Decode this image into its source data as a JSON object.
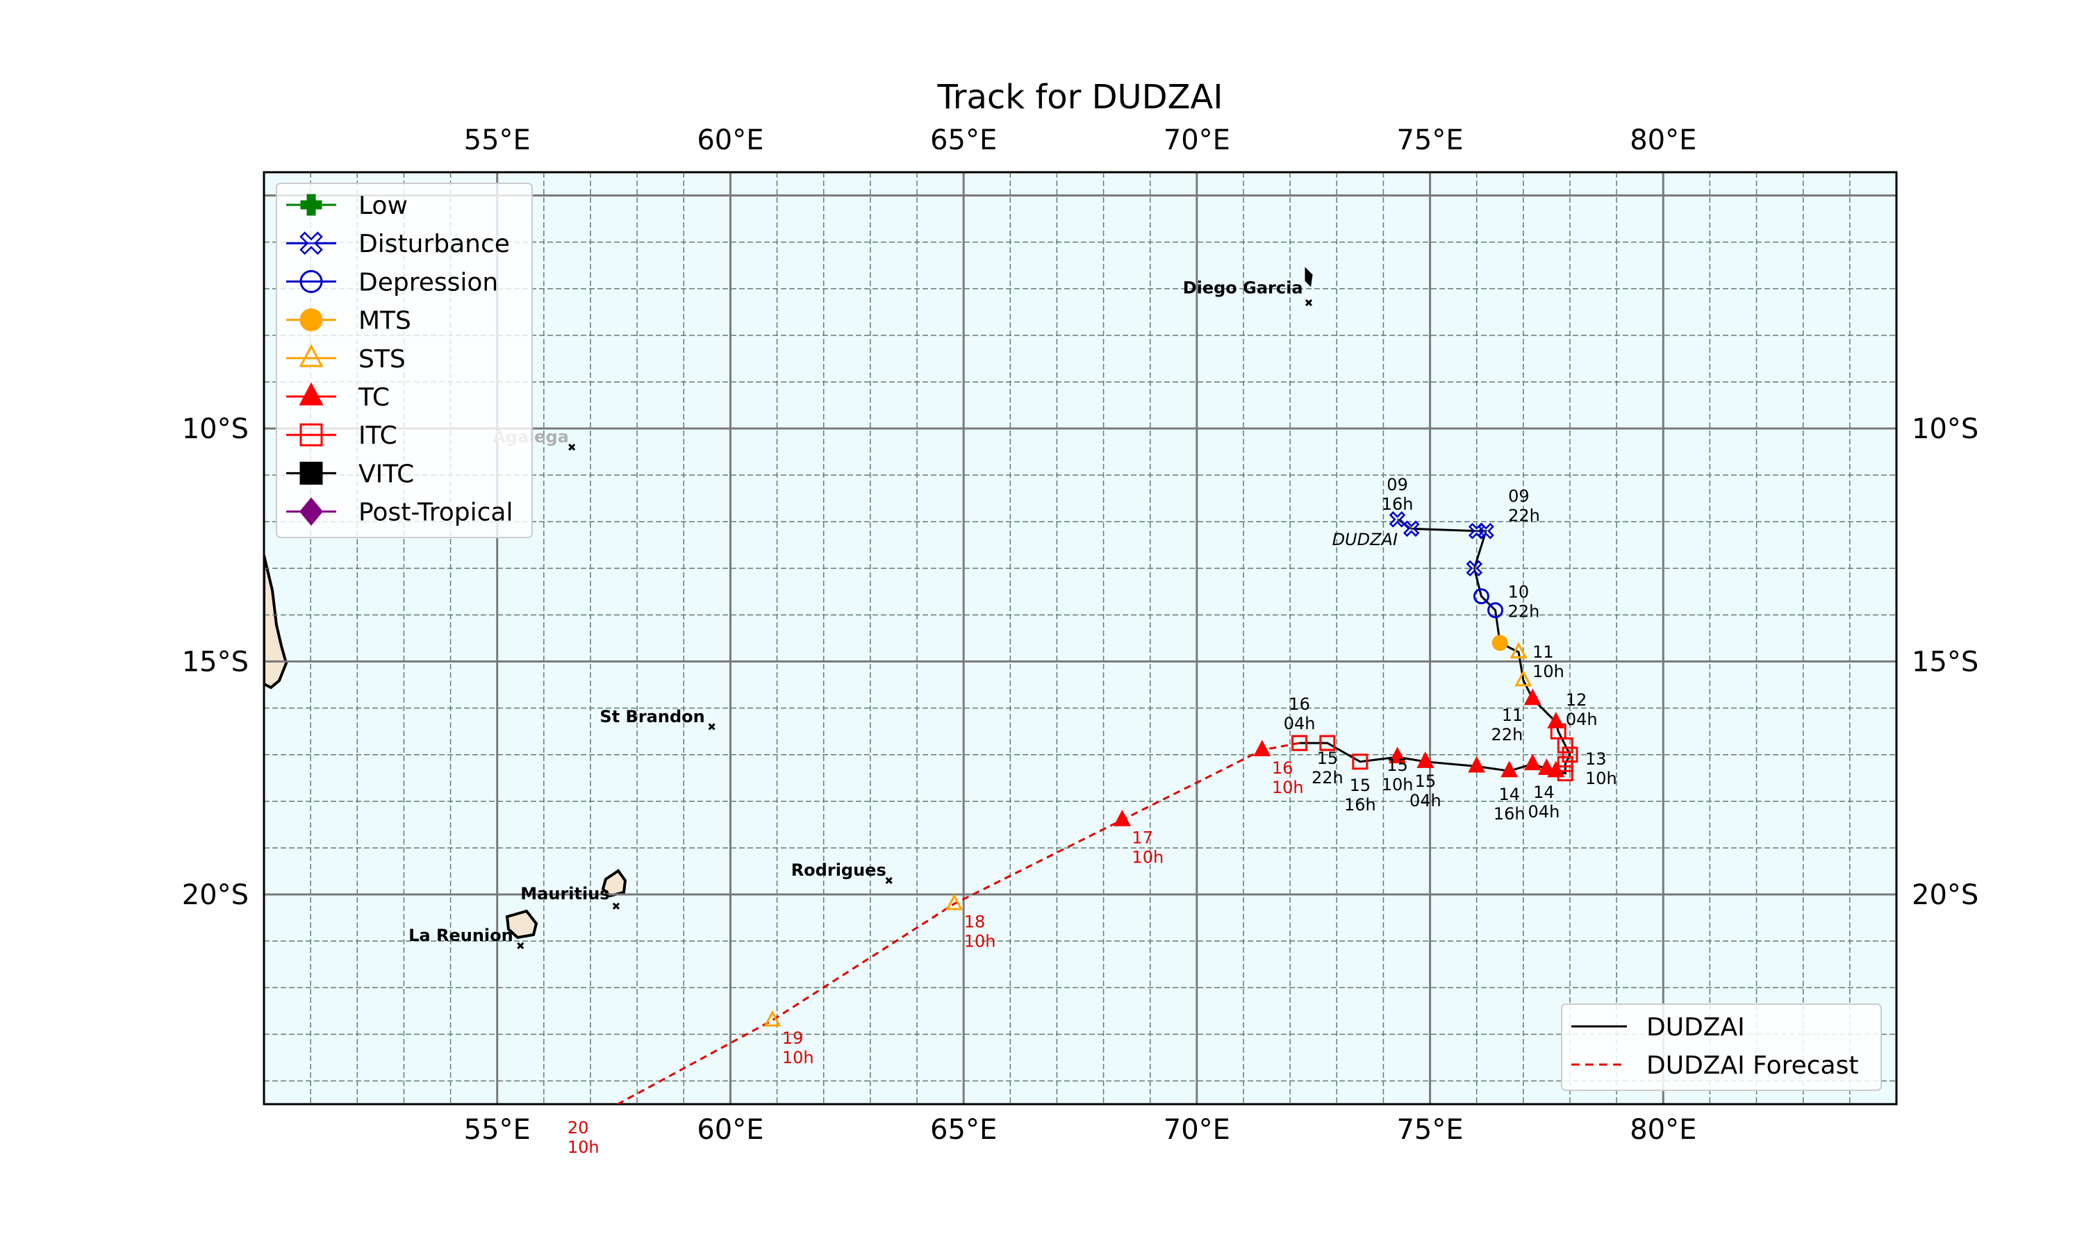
{
  "title": "Track for DUDZAI",
  "colors": {
    "ocean": "#eefbfc",
    "land": "#f5e6d3",
    "grid_major": "#7a7a7a",
    "grid_minor": "#5e7d70",
    "track": "#000000",
    "forecast": "#e00000",
    "low": "#008000",
    "disturbance": "#0000cc",
    "depression": "#0000cc",
    "mts": "#ffa500",
    "sts": "#ffa500",
    "tc": "#ff0000",
    "itc": "#ff0000",
    "vitc": "#000000",
    "post_tropical": "#800080"
  },
  "axes": {
    "lon_range": [
      50,
      85
    ],
    "lat_range": [
      -24.5,
      -4.5
    ],
    "lon_major": [
      55,
      60,
      65,
      70,
      75,
      80
    ],
    "lat_major": [
      -10,
      -15,
      -20
    ],
    "lon_labels": [
      "55°E",
      "60°E",
      "65°E",
      "70°E",
      "75°E",
      "80°E"
    ],
    "lat_labels": [
      "10°S",
      "15°S",
      "20°S"
    ]
  },
  "legend": {
    "placement": "upper-left",
    "entries": [
      {
        "label": "Low",
        "marker": "plus",
        "color": "#008000",
        "fill": true
      },
      {
        "label": "Disturbance",
        "marker": "x-open",
        "color": "#0000cc",
        "fill": false
      },
      {
        "label": "Depression",
        "marker": "circle",
        "color": "#0000cc",
        "fill": false
      },
      {
        "label": "MTS",
        "marker": "circle",
        "color": "#ffa500",
        "fill": true
      },
      {
        "label": "STS",
        "marker": "triangle",
        "color": "#ffa500",
        "fill": false
      },
      {
        "label": "TC",
        "marker": "triangle",
        "color": "#ff0000",
        "fill": true
      },
      {
        "label": "ITC",
        "marker": "square",
        "color": "#ff0000",
        "fill": false
      },
      {
        "label": "VITC",
        "marker": "square",
        "color": "#000000",
        "fill": true
      },
      {
        "label": "Post-Tropical",
        "marker": "diamond",
        "color": "#800080",
        "fill": true
      }
    ]
  },
  "track_legend": {
    "placement": "lower-right",
    "entries": [
      {
        "label": "DUDZAI",
        "style": "solid",
        "color": "#000000"
      },
      {
        "label": "DUDZAI Forecast",
        "style": "dashed",
        "color": "#e00000"
      }
    ]
  },
  "places": [
    {
      "name": "Diego Garcia",
      "lon": 72.4,
      "lat": -7.3,
      "label_lon": 69.7,
      "label_lat": -7.1
    },
    {
      "name": "Agalega",
      "lon": 56.6,
      "lat": -10.4,
      "label_lon": 54.9,
      "label_lat": -10.3,
      "faded": true
    },
    {
      "name": "St Brandon",
      "lon": 59.6,
      "lat": -16.4,
      "label_lon": 57.2,
      "label_lat": -16.3
    },
    {
      "name": "Rodrigues",
      "lon": 63.4,
      "lat": -19.7,
      "label_lon": 61.3,
      "label_lat": -19.6
    },
    {
      "name": "Mauritius",
      "lon": 57.55,
      "lat": -20.25,
      "label_lon": 55.5,
      "label_lat": -20.1
    },
    {
      "name": "La Reunion",
      "lon": 55.5,
      "lat": -21.1,
      "label_lon": 53.1,
      "label_lat": -21.0
    }
  ],
  "storm_label": {
    "text": "DUDZAI",
    "lon": 72.9,
    "lat": -12.5
  },
  "chart_data": {
    "type": "map-track",
    "storm": "DUDZAI",
    "observed_track": [
      {
        "lon": 74.3,
        "lat": -11.95,
        "category": "Disturbance",
        "label": "09 16h"
      },
      {
        "lon": 74.6,
        "lat": -12.15,
        "category": "Disturbance"
      },
      {
        "lon": 76.0,
        "lat": -12.2,
        "category": "Disturbance"
      },
      {
        "lon": 76.2,
        "lat": -12.2,
        "category": "Disturbance",
        "label": "09 22h"
      },
      {
        "lon": 75.95,
        "lat": -13.0,
        "category": "Disturbance"
      },
      {
        "lon": 76.1,
        "lat": -13.6,
        "category": "Depression"
      },
      {
        "lon": 76.4,
        "lat": -13.9,
        "category": "Depression",
        "label": "10 22h"
      },
      {
        "lon": 76.5,
        "lat": -14.6,
        "category": "MTS"
      },
      {
        "lon": 76.9,
        "lat": -14.8,
        "category": "STS",
        "label": "11 10h"
      },
      {
        "lon": 77.0,
        "lat": -15.4,
        "category": "STS"
      },
      {
        "lon": 77.2,
        "lat": -15.8,
        "category": "TC",
        "label": "11 22h"
      },
      {
        "lon": 77.7,
        "lat": -16.3,
        "category": "TC",
        "label": "12 04h"
      },
      {
        "lon": 77.75,
        "lat": -16.5,
        "category": "ITC"
      },
      {
        "lon": 77.9,
        "lat": -16.8,
        "category": "ITC"
      },
      {
        "lon": 78.0,
        "lat": -17.0,
        "category": "ITC",
        "label": "13 10h"
      },
      {
        "lon": 77.9,
        "lat": -17.2,
        "category": "ITC"
      },
      {
        "lon": 77.9,
        "lat": -17.4,
        "category": "ITC"
      },
      {
        "lon": 77.7,
        "lat": -17.35,
        "category": "TC"
      },
      {
        "lon": 77.5,
        "lat": -17.3,
        "category": "TC",
        "label": "14 04h"
      },
      {
        "lon": 77.2,
        "lat": -17.2,
        "category": "TC"
      },
      {
        "lon": 76.7,
        "lat": -17.35,
        "category": "TC",
        "label": "14 16h"
      },
      {
        "lon": 76.0,
        "lat": -17.25,
        "category": "TC"
      },
      {
        "lon": 74.9,
        "lat": -17.15,
        "category": "TC",
        "label": "15 04h"
      },
      {
        "lon": 74.3,
        "lat": -17.05,
        "category": "TC",
        "label": "15 10h"
      },
      {
        "lon": 73.5,
        "lat": -17.15,
        "category": "ITC",
        "label": "15 16h"
      },
      {
        "lon": 72.8,
        "lat": -16.75,
        "category": "ITC",
        "label": "15 22h"
      },
      {
        "lon": 72.2,
        "lat": -16.75,
        "category": "ITC",
        "label": "16 04h"
      }
    ],
    "forecast_track": [
      {
        "lon": 72.2,
        "lat": -16.75
      },
      {
        "lon": 71.4,
        "lat": -16.9,
        "category": "TC",
        "label": "16 10h"
      },
      {
        "lon": 68.4,
        "lat": -18.4,
        "category": "TC",
        "label": "17 10h"
      },
      {
        "lon": 64.8,
        "lat": -20.2,
        "category": "STS",
        "label": "18 10h"
      },
      {
        "lon": 60.9,
        "lat": -22.7,
        "category": "STS",
        "label": "19 10h"
      },
      {
        "lon": 57.4,
        "lat": -24.6,
        "label": "20 10h"
      }
    ]
  }
}
